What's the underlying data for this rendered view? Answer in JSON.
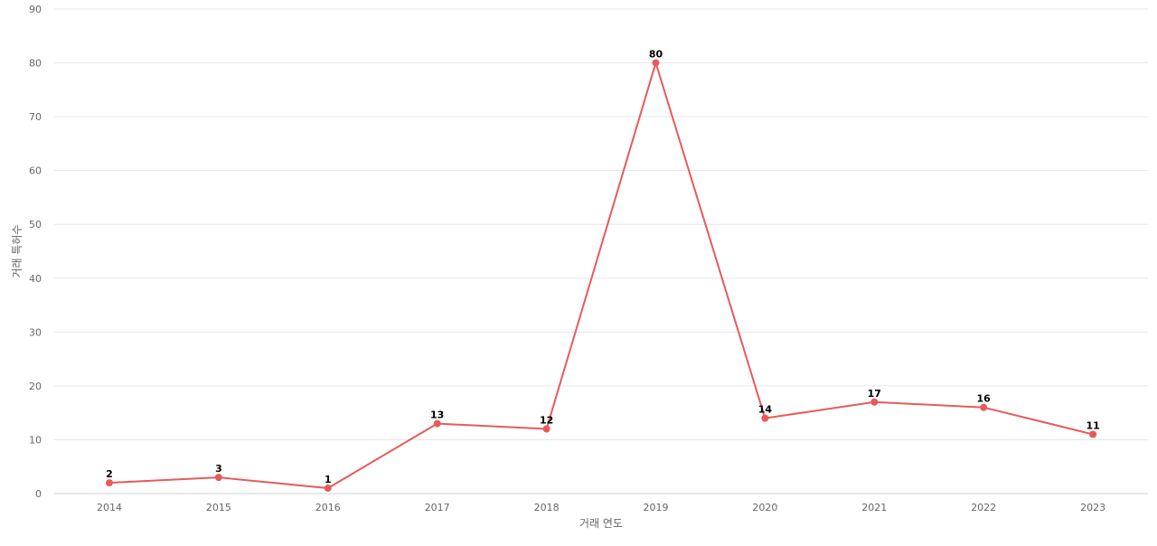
{
  "chart_data": {
    "type": "line",
    "title": "",
    "xlabel": "거래 연도",
    "ylabel": "거래 특허수",
    "x": [
      "2014",
      "2015",
      "2016",
      "2017",
      "2018",
      "2019",
      "2020",
      "2021",
      "2022",
      "2023"
    ],
    "series": [
      {
        "values": [
          2,
          3,
          1,
          13,
          12,
          80,
          14,
          17,
          16,
          11
        ]
      }
    ],
    "ylim": [
      0,
      90
    ],
    "yticks": [
      0,
      10,
      20,
      30,
      40,
      50,
      60,
      70,
      80,
      90
    ],
    "grid": true,
    "legend": "none",
    "data_labels": true,
    "colors": {
      "line": "#e85a5a",
      "marker": "#e85a5a"
    }
  }
}
